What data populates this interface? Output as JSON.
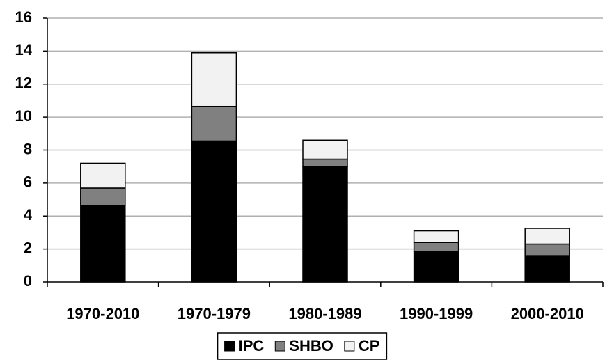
{
  "chart_data": {
    "type": "stacked_bar",
    "categories": [
      "1970-2010",
      "1970-1979",
      "1980-1989",
      "1990-1999",
      "2000-2010"
    ],
    "series": [
      {
        "name": "IPC",
        "color": "#000000",
        "values": [
          4.65,
          8.55,
          7.0,
          1.85,
          1.6
        ]
      },
      {
        "name": "SHBO",
        "color": "#808080",
        "values": [
          1.05,
          2.1,
          0.45,
          0.55,
          0.7
        ]
      },
      {
        "name": "CP",
        "color": "#f2f2f2",
        "values": [
          1.5,
          3.25,
          1.15,
          0.7,
          0.95
        ]
      }
    ],
    "ylim": [
      0,
      16
    ],
    "yticks": [
      0,
      2,
      4,
      6,
      8,
      10,
      12,
      14,
      16
    ],
    "grid": true,
    "legend": "bottom"
  }
}
